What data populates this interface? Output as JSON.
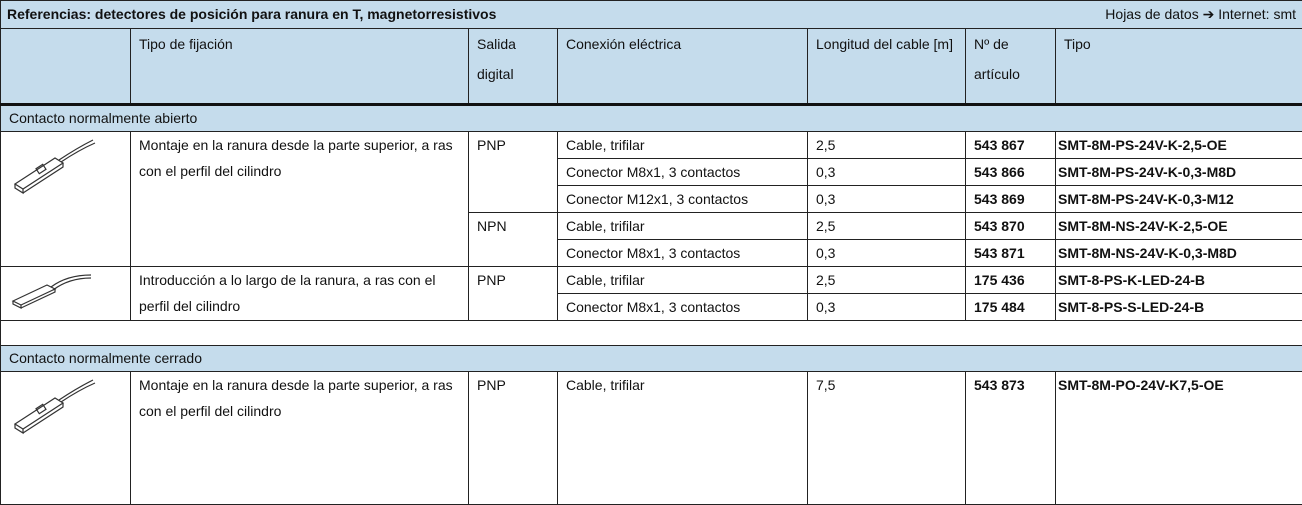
{
  "header": {
    "title": "Referencias: detectores de posición para ranura en T, magnetorresistivos",
    "datasheet": "Hojas de datos ➔ Internet: smt"
  },
  "columns": [
    "Tipo de fijación",
    "Salida digital",
    "Conexión eléctrica",
    "Longitud del cable [m]",
    "Nº de artículo",
    "Tipo"
  ],
  "sections": [
    {
      "label": "Contacto normalmente abierto",
      "groups": [
        {
          "mounting": "Montaje en la ranura desde la parte superior, a ras con el perfil del cilindro",
          "outputs": [
            {
              "output": "PNP",
              "rows": [
                {
                  "connection": "Cable, trifilar",
                  "length": "2,5",
                  "article": "543 867",
                  "type": "SMT-8M-PS-24V-K-2,5-OE"
                },
                {
                  "connection": "Conector M8x1, 3 contactos",
                  "length": "0,3",
                  "article": "543 866",
                  "type": "SMT-8M-PS-24V-K-0,3-M8D"
                },
                {
                  "connection": "Conector M12x1, 3 contactos",
                  "length": "0,3",
                  "article": "543 869",
                  "type": "SMT-8M-PS-24V-K-0,3-M12"
                }
              ]
            },
            {
              "output": "NPN",
              "rows": [
                {
                  "connection": "Cable, trifilar",
                  "length": "2,5",
                  "article": "543 870",
                  "type": "SMT-8M-NS-24V-K-2,5-OE"
                },
                {
                  "connection": "Conector M8x1, 3 contactos",
                  "length": "0,3",
                  "article": "543 871",
                  "type": "SMT-8M-NS-24V-K-0,3-M8D"
                }
              ]
            }
          ]
        },
        {
          "mounting": "Introducción a lo largo de la ranura, a ras con el perfil del cilindro",
          "outputs": [
            {
              "output": "PNP",
              "rows": [
                {
                  "connection": "Cable, trifilar",
                  "length": "2,5",
                  "article": "175 436",
                  "type": "SMT-8-PS-K-LED-24-B"
                },
                {
                  "connection": "Conector M8x1, 3 contactos",
                  "length": "0,3",
                  "article": "175 484",
                  "type": "SMT-8-PS-S-LED-24-B"
                }
              ]
            }
          ]
        }
      ]
    },
    {
      "label": "Contacto normalmente cerrado",
      "groups": [
        {
          "mounting": "Montaje en la ranura desde la parte superior, a ras con el perfil del cilindro",
          "outputs": [
            {
              "output": "PNP",
              "rows": [
                {
                  "connection": "Cable, trifilar",
                  "length": "7,5",
                  "article": "543 873",
                  "type": "SMT-8M-PO-24V-K7,5-OE"
                }
              ]
            }
          ]
        }
      ]
    }
  ]
}
